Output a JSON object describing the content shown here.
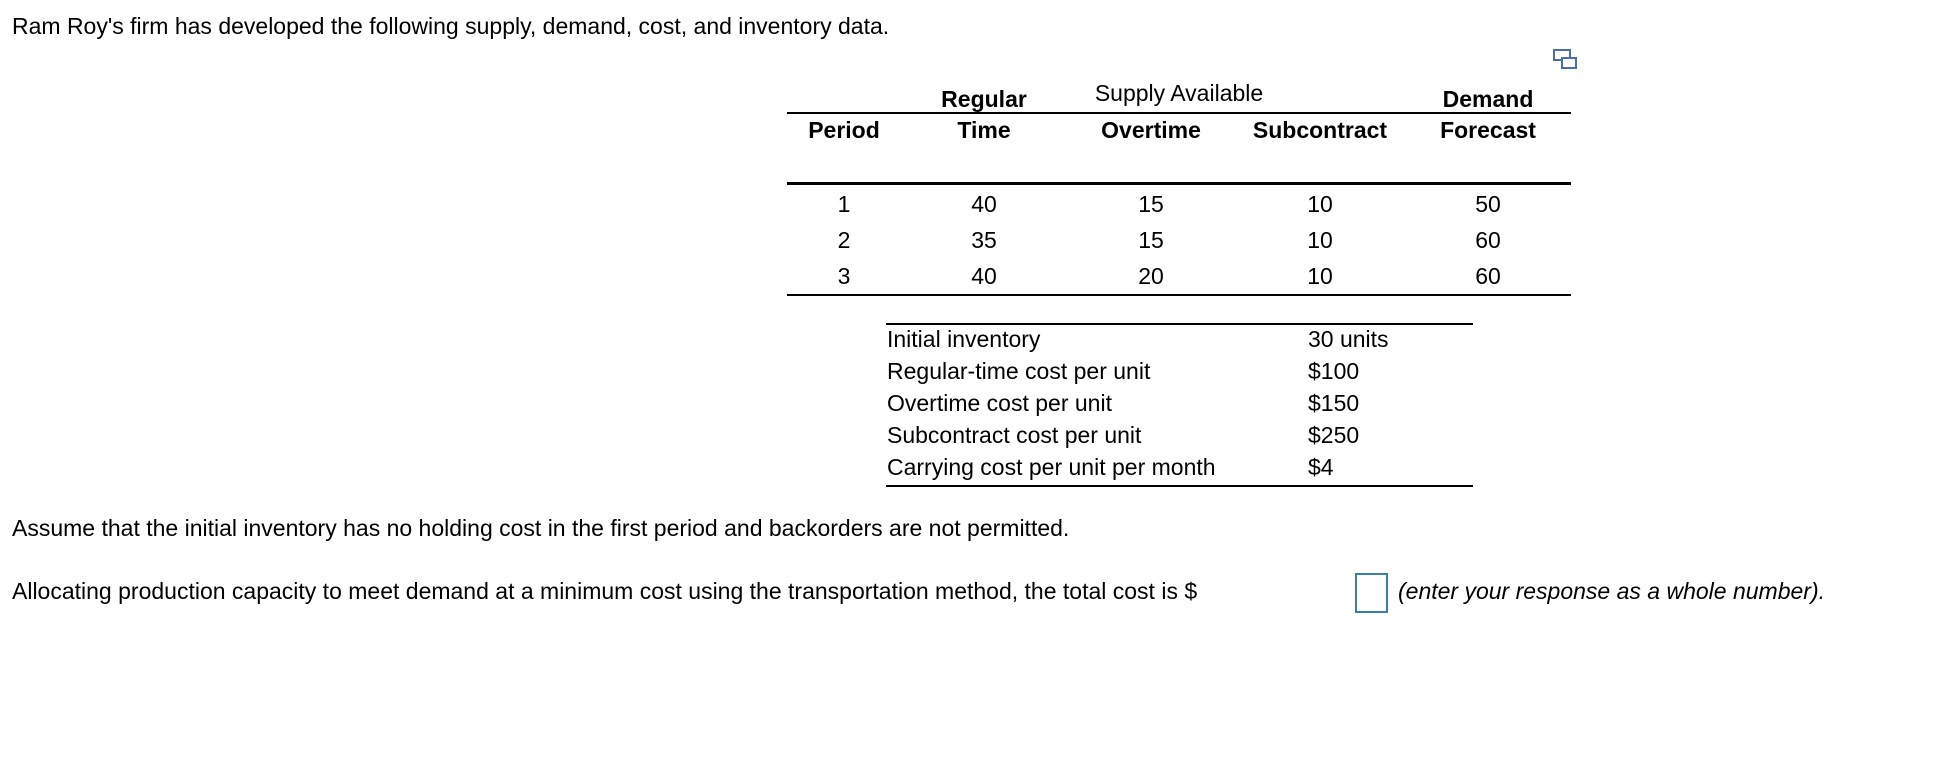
{
  "intro": "Ram Roy's firm has developed the following supply, demand, cost, and inventory data.",
  "supply_table": {
    "title": "Supply Available",
    "headers": [
      [
        "Period"
      ],
      [
        "Regular",
        "Time"
      ],
      [
        "Overtime"
      ],
      [
        "Subcontract"
      ],
      [
        "Demand",
        "Forecast"
      ]
    ],
    "rows": [
      [
        1,
        40,
        15,
        10,
        50
      ],
      [
        2,
        35,
        15,
        10,
        60
      ],
      [
        3,
        40,
        20,
        10,
        60
      ]
    ]
  },
  "cost_table": {
    "rows": [
      [
        "Initial inventory",
        "30 units"
      ],
      [
        "Regular-time cost per unit",
        "$100"
      ],
      [
        "Overtime cost per unit",
        "$150"
      ],
      [
        "Subcontract cost per unit",
        "$250"
      ],
      [
        "Carrying cost per unit per month",
        "$4"
      ]
    ]
  },
  "assumption": "Assume that the initial inventory has no holding cost in the first period and backorders are not permitted.",
  "question": {
    "prefix": "Allocating production capacity to meet demand at a minimum cost using the transportation method, the total cost is $",
    "suffix": "(enter your response as a whole number)."
  }
}
